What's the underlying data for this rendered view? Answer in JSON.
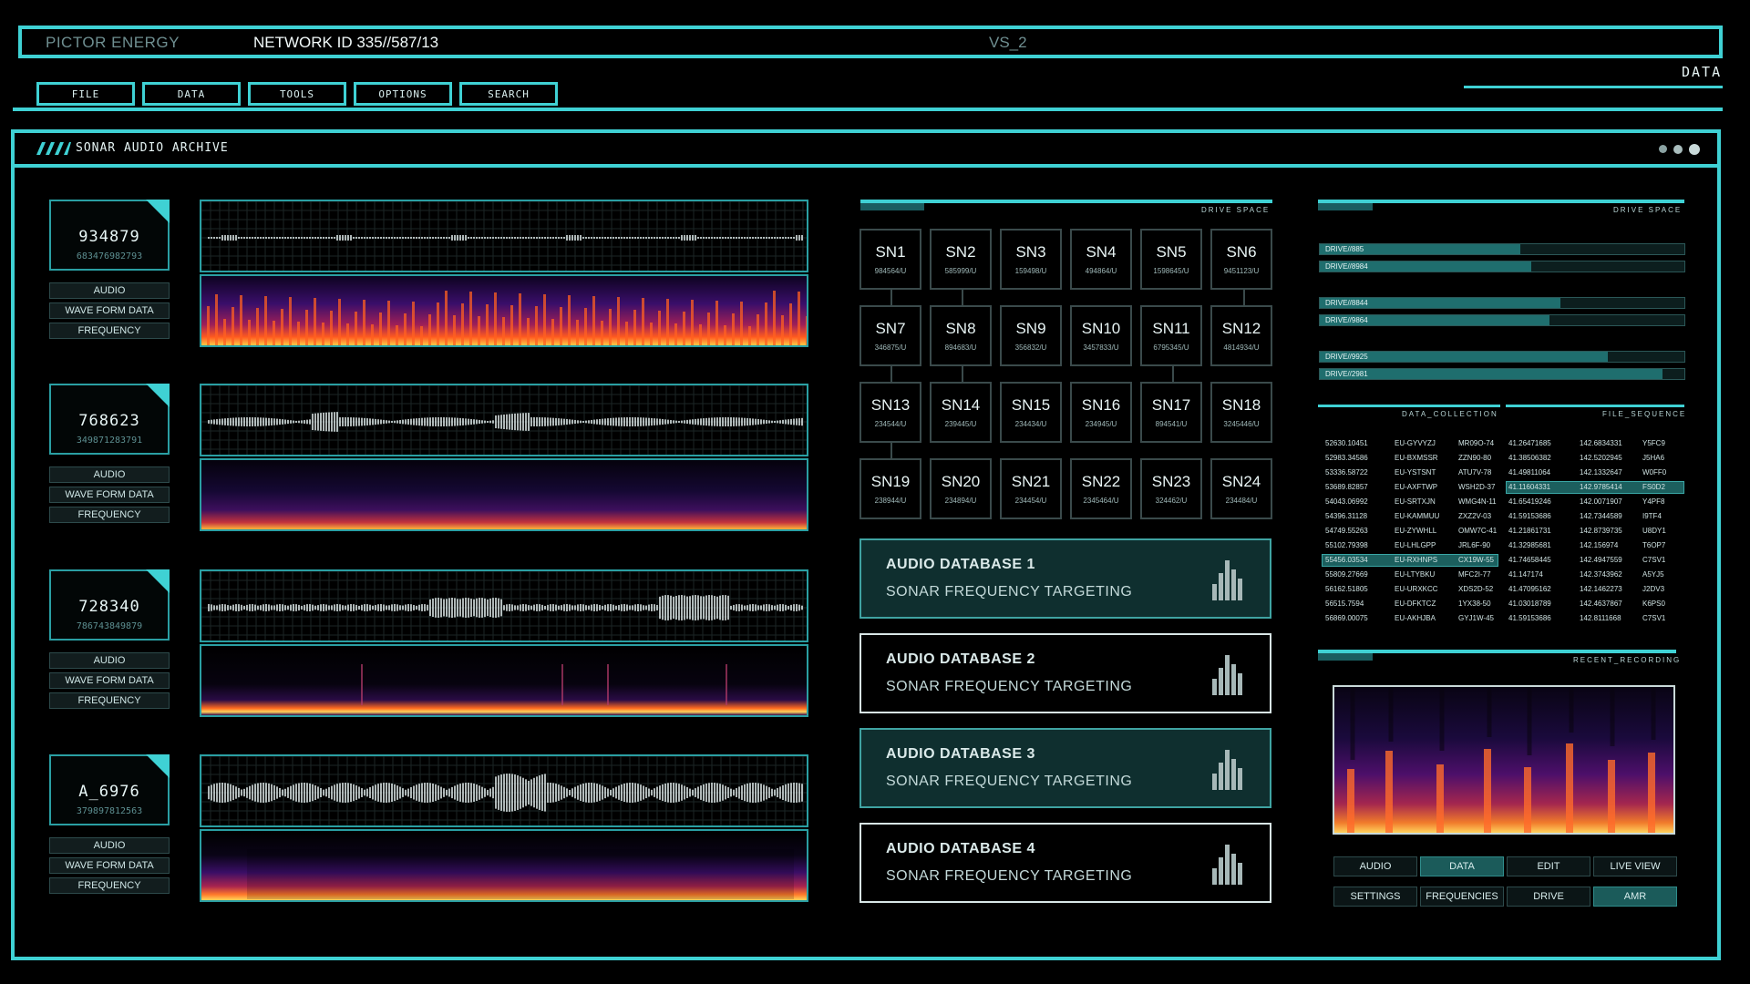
{
  "header": {
    "brand": "PICTOR ENERGY",
    "network": "NETWORK ID 335//587/13",
    "vs": "VS_2",
    "data_label": "DATA"
  },
  "menu": [
    "FILE",
    "DATA",
    "TOOLS",
    "OPTIONS",
    "SEARCH"
  ],
  "window": {
    "title": "SONAR AUDIO ARCHIVE",
    "controls": [
      "dot-1",
      "dot-2",
      "dot-3"
    ]
  },
  "recordings": [
    {
      "id": "934879",
      "code": "683476982793",
      "tags": [
        "AUDIO",
        "WAVE FORM DATA",
        "FREQUENCY"
      ]
    },
    {
      "id": "768623",
      "code": "349871283791",
      "tags": [
        "AUDIO",
        "WAVE FORM DATA",
        "FREQUENCY"
      ]
    },
    {
      "id": "728340",
      "code": "786743849879",
      "tags": [
        "AUDIO",
        "WAVE FORM DATA",
        "FREQUENCY"
      ]
    },
    {
      "id": "A_6976",
      "code": "379897812563",
      "tags": [
        "AUDIO",
        "WAVE FORM DATA",
        "FREQUENCY"
      ]
    }
  ],
  "drive_space_label": "DRIVE SPACE",
  "sn_grid": [
    {
      "t": "SN1",
      "s": "984564/U"
    },
    {
      "t": "SN2",
      "s": "585999/U"
    },
    {
      "t": "SN3",
      "s": "159498/U"
    },
    {
      "t": "SN4",
      "s": "494864/U"
    },
    {
      "t": "SN5",
      "s": "1598645/U"
    },
    {
      "t": "SN6",
      "s": "9451123/U"
    },
    {
      "t": "SN7",
      "s": "346875/U"
    },
    {
      "t": "SN8",
      "s": "894683/U"
    },
    {
      "t": "SN9",
      "s": "356832/U"
    },
    {
      "t": "SN10",
      "s": "3457833/U"
    },
    {
      "t": "SN11",
      "s": "6795345/U"
    },
    {
      "t": "SN12",
      "s": "4814934/U"
    },
    {
      "t": "SN13",
      "s": "234544/U"
    },
    {
      "t": "SN14",
      "s": "239445/U"
    },
    {
      "t": "SN15",
      "s": "234434/U"
    },
    {
      "t": "SN16",
      "s": "234945/U"
    },
    {
      "t": "SN17",
      "s": "894541/U"
    },
    {
      "t": "SN18",
      "s": "3245446/U"
    },
    {
      "t": "SN19",
      "s": "238944/U"
    },
    {
      "t": "SN20",
      "s": "234894/U"
    },
    {
      "t": "SN21",
      "s": "234454/U"
    },
    {
      "t": "SN22",
      "s": "2345464/U"
    },
    {
      "t": "SN23",
      "s": "324462/U"
    },
    {
      "t": "SN24",
      "s": "234484/U"
    }
  ],
  "databases": [
    {
      "title": "AUDIO DATABASE 1",
      "sub": "SONAR FREQUENCY TARGETING",
      "active": true
    },
    {
      "title": "AUDIO DATABASE 2",
      "sub": "SONAR FREQUENCY TARGETING",
      "active": false
    },
    {
      "title": "AUDIO DATABASE 3",
      "sub": "SONAR FREQUENCY TARGETING",
      "active": true
    },
    {
      "title": "AUDIO DATABASE 4",
      "sub": "SONAR FREQUENCY TARGETING",
      "active": false
    }
  ],
  "drives": [
    {
      "label": "DRIVE//885",
      "fill": 0.55
    },
    {
      "label": "DRIVE//8984",
      "fill": 0.58
    },
    {
      "label": "DRIVE//8844",
      "fill": 0.66
    },
    {
      "label": "DRIVE//9864",
      "fill": 0.63
    },
    {
      "label": "DRIVE//9925",
      "fill": 0.79
    },
    {
      "label": "DRIVE//2981",
      "fill": 0.94
    }
  ],
  "table_headers": {
    "left": "DATA_COLLECTION",
    "right": "FILE_SEQUENCE"
  },
  "table_rows": [
    [
      "52630.10451",
      "EU-GYVYZJ",
      "MR09O-74",
      "41.26471685",
      "142.6834331",
      "Y5FC9"
    ],
    [
      "52983.34586",
      "EU-BXMSSR",
      "ZZN90-80",
      "41.38506382",
      "142.5202945",
      "J5HA6"
    ],
    [
      "53336.58722",
      "EU-YSTSNT",
      "ATU7V-78",
      "41.49811064",
      "142.1332647",
      "W0FF0"
    ],
    [
      "53689.82857",
      "EU-AXFTWP",
      "WSH2D-37",
      "41.11604331",
      "142.9785414",
      "FS0D2"
    ],
    [
      "54043.06992",
      "EU-SRTXJN",
      "WMG4N-11",
      "41.65419246",
      "142.0071907",
      "Y4PF8"
    ],
    [
      "54396.31128",
      "EU-KAMMUU",
      "ZXZ2V-03",
      "41.59153686",
      "142.7344589",
      "I9TF4"
    ],
    [
      "54749.55263",
      "EU-ZYWHLL",
      "OMW7C-41",
      "41.21861731",
      "142.8739735",
      "U8DY1"
    ],
    [
      "55102.79398",
      "EU-LHLGPP",
      "JRL6F-90",
      "41.32985681",
      "142.156974",
      "T6OP7"
    ],
    [
      "55456.03534",
      "EU-RXHNPS",
      "CX19W-55",
      "41.74658445",
      "142.4947559",
      "C7SV1"
    ],
    [
      "55809.27669",
      "EU-LTYBKU",
      "MFC2I-77",
      "41.147174",
      "142.3743962",
      "A5YJ5"
    ],
    [
      "56162.51805",
      "EU-URXKCC",
      "XDS2D-52",
      "41.47095162",
      "142.1462273",
      "J2DV3"
    ],
    [
      "56515.7594",
      "EU-DFKTCZ",
      "1YX38-50",
      "41.03018789",
      "142.4637867",
      "K6PS0"
    ],
    [
      "56869.00075",
      "EU-AKHJBA",
      "GYJ1W-45",
      "41.59153686",
      "142.8111668",
      "C7SV1"
    ]
  ],
  "recent_recording_label": "RECENT_RECORDING",
  "controls": [
    {
      "label": "AUDIO",
      "on": false
    },
    {
      "label": "DATA",
      "on": true
    },
    {
      "label": "EDIT",
      "on": false
    },
    {
      "label": "LIVE VIEW",
      "on": false
    },
    {
      "label": "SETTINGS",
      "on": false
    },
    {
      "label": "FREQUENCIES",
      "on": false
    },
    {
      "label": "DRIVE",
      "on": false
    },
    {
      "label": "AMR",
      "on": true
    }
  ]
}
